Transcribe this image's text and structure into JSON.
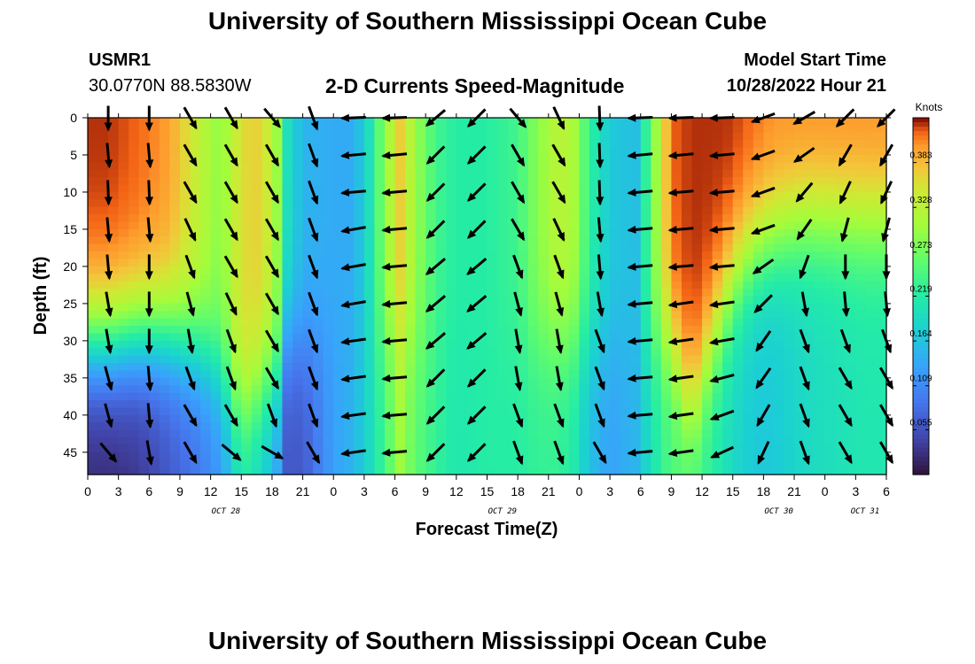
{
  "page": {
    "title": "University of Southern Mississippi Ocean Cube",
    "footer_title": "University of Southern Mississippi Ocean Cube"
  },
  "station": {
    "id": "USMR1",
    "coords": "30.0770N  88.5830W"
  },
  "model": {
    "start_label": "Model Start Time",
    "start_value": "10/28/2022 Hour 21"
  },
  "chart_data": {
    "type": "heatmap",
    "title": "2-D Currents Speed-Magnitude",
    "xlabel": "Forecast Time(Z)",
    "ylabel": "Depth (ft)",
    "x_ticks": [
      "0",
      "3",
      "6",
      "9",
      "12",
      "15",
      "18",
      "21",
      "0",
      "3",
      "6",
      "9",
      "12",
      "15",
      "18",
      "21",
      "0",
      "3",
      "6",
      "9",
      "12",
      "15",
      "18",
      "21",
      "0",
      "3",
      "6"
    ],
    "date_labels": [
      {
        "label": "OCT 28",
        "tick_index": 4.5
      },
      {
        "label": "OCT 29",
        "tick_index": 13.5
      },
      {
        "label": "OCT 30",
        "tick_index": 22.5
      },
      {
        "label": "OCT 31",
        "tick_index": 28
      }
    ],
    "x_hours_range": [
      0,
      78
    ],
    "y_ticks": [
      0,
      5,
      10,
      15,
      20,
      25,
      30,
      35,
      40,
      45
    ],
    "ylim": [
      0,
      48
    ],
    "y_inverted": true,
    "colorbar": {
      "units": "Knots",
      "ticks": [
        0.383,
        0.328,
        0.273,
        0.219,
        0.164,
        0.109,
        0.055
      ],
      "range": [
        0.0,
        0.438
      ]
    },
    "columns": [
      {
        "hour": 0,
        "surface": 0.43,
        "bottom": 0.02,
        "thermocline": 30
      },
      {
        "hour": 2,
        "surface": 0.43,
        "bottom": 0.02,
        "thermocline": 30
      },
      {
        "hour": 5,
        "surface": 0.42,
        "bottom": 0.03,
        "thermocline": 29
      },
      {
        "hour": 8,
        "surface": 0.4,
        "bottom": 0.06,
        "thermocline": 29
      },
      {
        "hour": 11,
        "surface": 0.33,
        "bottom": 0.09,
        "thermocline": 31
      },
      {
        "hour": 13,
        "surface": 0.29,
        "bottom": 0.12,
        "thermocline": 34
      },
      {
        "hour": 15,
        "surface": 0.36,
        "bottom": 0.2,
        "thermocline": 40
      },
      {
        "hour": 17,
        "surface": 0.37,
        "bottom": 0.18,
        "thermocline": 36
      },
      {
        "hour": 18.5,
        "surface": 0.3,
        "bottom": 0.13,
        "thermocline": 35
      },
      {
        "hour": 19.5,
        "surface": 0.2,
        "bottom": 0.06,
        "thermocline": 30
      },
      {
        "hour": 21,
        "surface": 0.15,
        "bottom": 0.06,
        "thermocline": 30
      },
      {
        "hour": 24,
        "surface": 0.14,
        "bottom": 0.13,
        "thermocline": 30
      },
      {
        "hour": 26,
        "surface": 0.14,
        "bottom": 0.15,
        "thermocline": 30
      },
      {
        "hour": 27.5,
        "surface": 0.2,
        "bottom": 0.19,
        "thermocline": 30
      },
      {
        "hour": 29,
        "surface": 0.29,
        "bottom": 0.24,
        "thermocline": 30
      },
      {
        "hour": 30.5,
        "surface": 0.37,
        "bottom": 0.3,
        "thermocline": 30
      },
      {
        "hour": 32,
        "surface": 0.3,
        "bottom": 0.26,
        "thermocline": 30
      },
      {
        "hour": 34,
        "surface": 0.24,
        "bottom": 0.23,
        "thermocline": 30
      },
      {
        "hour": 36,
        "surface": 0.22,
        "bottom": 0.21,
        "thermocline": 30
      },
      {
        "hour": 39,
        "surface": 0.22,
        "bottom": 0.22,
        "thermocline": 30
      },
      {
        "hour": 42,
        "surface": 0.24,
        "bottom": 0.22,
        "thermocline": 30
      },
      {
        "hour": 44,
        "surface": 0.29,
        "bottom": 0.23,
        "thermocline": 30
      },
      {
        "hour": 46,
        "surface": 0.33,
        "bottom": 0.23,
        "thermocline": 30
      },
      {
        "hour": 47.5,
        "surface": 0.31,
        "bottom": 0.21,
        "thermocline": 30
      },
      {
        "hour": 49,
        "surface": 0.23,
        "bottom": 0.16,
        "thermocline": 30
      },
      {
        "hour": 51,
        "surface": 0.17,
        "bottom": 0.13,
        "thermocline": 30
      },
      {
        "hour": 53.5,
        "surface": 0.16,
        "bottom": 0.15,
        "thermocline": 30
      },
      {
        "hour": 55,
        "surface": 0.26,
        "bottom": 0.2,
        "thermocline": 30
      },
      {
        "hour": 57,
        "surface": 0.42,
        "bottom": 0.25,
        "thermocline": 30
      },
      {
        "hour": 59,
        "surface": 0.43,
        "bottom": 0.24,
        "thermocline": 40
      },
      {
        "hour": 61,
        "surface": 0.43,
        "bottom": 0.22,
        "thermocline": 30
      },
      {
        "hour": 63,
        "surface": 0.43,
        "bottom": 0.19,
        "thermocline": 22
      },
      {
        "hour": 65,
        "surface": 0.42,
        "bottom": 0.17,
        "thermocline": 18
      },
      {
        "hour": 67,
        "surface": 0.41,
        "bottom": 0.17,
        "thermocline": 16
      },
      {
        "hour": 70,
        "surface": 0.41,
        "bottom": 0.19,
        "thermocline": 14
      },
      {
        "hour": 73,
        "surface": 0.41,
        "bottom": 0.2,
        "thermocline": 14
      },
      {
        "hour": 76,
        "surface": 0.41,
        "bottom": 0.21,
        "thermocline": 14
      },
      {
        "hour": 78,
        "surface": 0.41,
        "bottom": 0.21,
        "thermocline": 14
      }
    ],
    "vectors": {
      "hours": [
        2,
        6,
        10,
        14,
        18,
        22,
        26,
        30,
        34,
        38,
        42,
        46,
        50,
        54,
        58,
        62,
        66,
        70,
        74,
        78
      ],
      "depths": [
        0,
        5,
        10,
        15,
        20,
        25,
        30,
        35,
        40,
        45
      ],
      "direction_deg": [
        [
          180,
          180,
          150,
          150,
          140,
          160,
          268,
          268,
          230,
          225,
          140,
          155,
          178,
          268,
          268,
          268,
          250,
          240,
          225,
          225
        ],
        [
          175,
          175,
          150,
          150,
          150,
          160,
          265,
          265,
          225,
          225,
          150,
          150,
          178,
          265,
          265,
          265,
          250,
          235,
          210,
          210
        ],
        [
          178,
          178,
          150,
          150,
          150,
          160,
          265,
          265,
          225,
          225,
          150,
          150,
          178,
          265,
          265,
          265,
          250,
          220,
          205,
          205
        ],
        [
          175,
          175,
          155,
          150,
          150,
          160,
          260,
          265,
          225,
          225,
          150,
          155,
          175,
          265,
          265,
          265,
          250,
          215,
          195,
          195
        ],
        [
          175,
          180,
          160,
          150,
          150,
          160,
          260,
          265,
          230,
          230,
          160,
          160,
          175,
          265,
          265,
          265,
          235,
          200,
          180,
          180
        ],
        [
          170,
          180,
          165,
          155,
          150,
          160,
          260,
          265,
          230,
          230,
          165,
          165,
          170,
          265,
          262,
          262,
          225,
          170,
          175,
          175
        ],
        [
          170,
          180,
          170,
          160,
          150,
          160,
          262,
          265,
          230,
          230,
          170,
          170,
          160,
          265,
          262,
          260,
          215,
          160,
          160,
          160
        ],
        [
          165,
          175,
          160,
          160,
          150,
          160,
          262,
          265,
          225,
          225,
          170,
          170,
          160,
          265,
          262,
          255,
          215,
          160,
          150,
          150
        ],
        [
          165,
          175,
          150,
          150,
          160,
          160,
          262,
          265,
          225,
          225,
          160,
          160,
          160,
          265,
          262,
          250,
          210,
          160,
          150,
          150
        ],
        [
          140,
          170,
          150,
          130,
          120,
          150,
          262,
          265,
          225,
          225,
          160,
          160,
          150,
          265,
          262,
          245,
          205,
          160,
          150,
          150
        ]
      ]
    }
  }
}
